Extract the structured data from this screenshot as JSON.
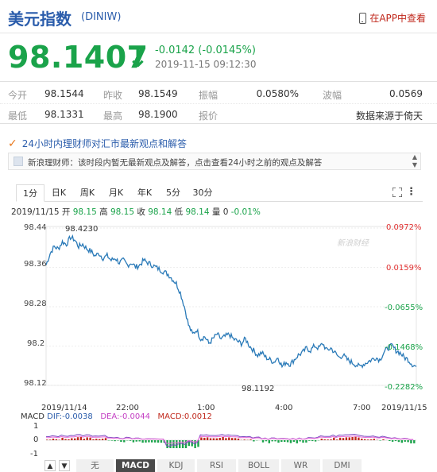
{
  "header": {
    "title": "美元指数",
    "code": "(DINIW)",
    "app_link": "在APP中查看"
  },
  "quote": {
    "price": "98.1407",
    "arrow": "↓",
    "change": "-0.0142 (-0.0145%)",
    "time": "2019-11-15 09:12:30",
    "color": "#1aa34a"
  },
  "stats": {
    "open_label": "今开",
    "open": "98.1544",
    "prev_label": "昨收",
    "prev": "98.1549",
    "amp_label": "振幅",
    "amp": "0.0580%",
    "wave_label": "波幅",
    "wave": "0.0569",
    "low_label": "最低",
    "low": "98.1331",
    "high_label": "最高",
    "high": "98.1900",
    "quote_label": "报价",
    "source": "数据来源于倚天"
  },
  "news": {
    "headline": "24小时内理财师对汇市最新观点和解答",
    "message": "新浪理财师：该时段内暂无最新观点及解答，点击查看24小时之前的观点及解答"
  },
  "tabs": [
    "1分",
    "日K",
    "周K",
    "月K",
    "年K",
    "5分",
    "30分"
  ],
  "ohlc": {
    "date": "2019/11/15",
    "open_label": "开",
    "open": "98.15",
    "high_label": "高",
    "high": "98.15",
    "close_label": "收",
    "close": "98.14",
    "low_label": "低",
    "low": "98.14",
    "vol_label": "量",
    "vol": "0",
    "pct": "-0.01%"
  },
  "watermark": "新浪财经",
  "chart_data": {
    "type": "line",
    "y_ticks": [
      "98.44",
      "98.36",
      "98.28",
      "98.2",
      "98.12"
    ],
    "pct_ticks": [
      "0.0972%",
      "0.0159%",
      "-0.0655%",
      "-0.1468%",
      "-0.2282%"
    ],
    "x_ticks": [
      "2019/11/14",
      "22:00",
      "1:00",
      "4:00",
      "7:00",
      "2019/11/15"
    ],
    "annotations": {
      "max": "98.4230",
      "min": "98.1192"
    },
    "ylim": [
      98.1,
      98.45
    ],
    "y_top": 98.44,
    "y_bottom": 98.12,
    "series": [
      {
        "values": [
          98.36,
          98.385,
          98.4,
          98.395,
          98.41,
          98.405,
          98.42,
          98.415,
          98.4,
          98.405,
          98.395,
          98.39,
          98.38,
          98.385,
          98.375,
          98.38,
          98.37,
          98.375,
          98.365,
          98.37,
          98.36,
          98.365,
          98.355,
          98.36,
          98.37,
          98.365,
          98.36,
          98.355,
          98.35,
          98.345,
          98.34,
          98.33,
          98.32,
          98.3,
          98.27,
          98.23,
          98.21,
          98.22,
          98.2,
          98.205,
          98.19,
          98.2,
          98.21,
          98.2,
          98.205,
          98.21,
          98.2,
          98.195,
          98.19,
          98.2,
          98.185,
          98.175,
          98.165,
          98.17,
          98.16,
          98.155,
          98.15,
          98.16,
          98.14,
          98.15,
          98.145,
          98.155,
          98.165,
          98.17,
          98.18,
          98.175,
          98.185,
          98.18,
          98.19,
          98.175,
          98.18,
          98.17,
          98.16,
          98.165,
          98.155,
          98.15,
          98.145,
          98.14,
          98.145,
          98.15,
          98.155,
          98.16,
          98.155,
          98.17,
          98.18,
          98.185,
          98.175,
          98.17,
          98.16,
          98.155,
          98.145,
          98.14
        ]
      }
    ],
    "macd": {
      "label": "MACD",
      "dif_label": "DIF:",
      "dif": "-0.0038",
      "dea_label": "DEA:",
      "dea": "-0.0044",
      "macd_label": "MACD:",
      "macd": "0.0012",
      "y_ticks": [
        "1",
        "0",
        "-1"
      ]
    }
  },
  "indicators": [
    "无",
    "MACD",
    "KDJ",
    "RSI",
    "BOLL",
    "WR",
    "DMI"
  ],
  "nav": {
    "up": "▲",
    "down": "▼"
  }
}
